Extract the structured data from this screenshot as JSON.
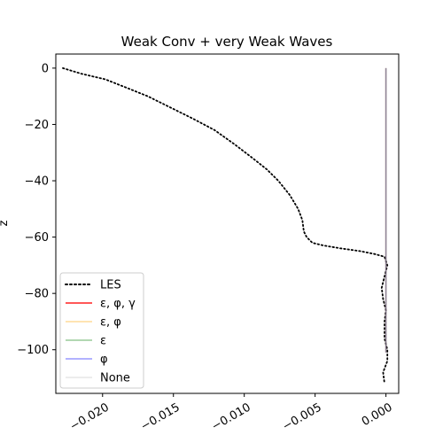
{
  "chart_data": {
    "type": "line",
    "title": "Weak Conv + very Weak Waves",
    "xlabel": "",
    "ylabel": "z",
    "xlim": [
      -0.0233,
      0.0009
    ],
    "ylim": [
      -115.5,
      5.0
    ],
    "xticks": [
      -0.02,
      -0.015,
      -0.01,
      -0.005,
      0.0
    ],
    "xtick_labels": [
      "−0.020",
      "−0.015",
      "−0.010",
      "−0.005",
      "0.000"
    ],
    "yticks": [
      0,
      -20,
      -40,
      -60,
      -80,
      -100
    ],
    "ytick_labels": [
      "0",
      "−20",
      "−40",
      "−60",
      "−80",
      "−100"
    ],
    "grid": false,
    "legend_position": "lower-left",
    "series": [
      {
        "name": "LES",
        "color": "#000000",
        "style": "dotted",
        "x": [
          -0.0228,
          -0.0215,
          -0.0198,
          -0.0183,
          -0.0168,
          -0.0152,
          -0.0136,
          -0.0121,
          -0.0107,
          -0.0094,
          -0.0084,
          -0.0076,
          -0.0068,
          -0.0062,
          -0.0059,
          -0.0058,
          -0.0056,
          -0.0052,
          -0.0044,
          -0.0032,
          -0.0018,
          -0.0008,
          -0.0001,
          0.0001,
          -0.0001,
          -0.0003,
          -0.0002,
          0.0,
          -0.0001,
          -0.0001,
          0.0001,
          0.0001,
          -0.0002,
          -0.0001
        ],
        "y": [
          0,
          -2,
          -4,
          -7,
          -10,
          -14,
          -18,
          -22,
          -27,
          -32,
          -36,
          -40,
          -45,
          -50,
          -54,
          -58,
          -60,
          -62,
          -63,
          -64,
          -65,
          -66,
          -67,
          -70,
          -74,
          -78,
          -82,
          -86,
          -90,
          -96,
          -100,
          -104,
          -108,
          -112
        ]
      },
      {
        "name": "ε, φ, γ",
        "color": "#ff0000",
        "style": "solid",
        "x": [
          0.0,
          0.0
        ],
        "y": [
          0,
          -101
        ]
      },
      {
        "name": "ε, φ",
        "color": "#ffa500",
        "style": "solid",
        "x": [
          0.0,
          0.0
        ],
        "y": [
          0,
          -101
        ]
      },
      {
        "name": "ε",
        "color": "#008000",
        "style": "solid",
        "x": [
          0.0,
          0.0
        ],
        "y": [
          0,
          -101
        ]
      },
      {
        "name": "φ",
        "color": "#0000ff",
        "style": "solid",
        "x": [
          0.0,
          0.0
        ],
        "y": [
          0,
          -101
        ]
      },
      {
        "name": "None",
        "color": "#c0c0c0",
        "style": "solid",
        "x": [
          0.0,
          0.0
        ],
        "y": [
          0,
          -101
        ]
      }
    ]
  }
}
